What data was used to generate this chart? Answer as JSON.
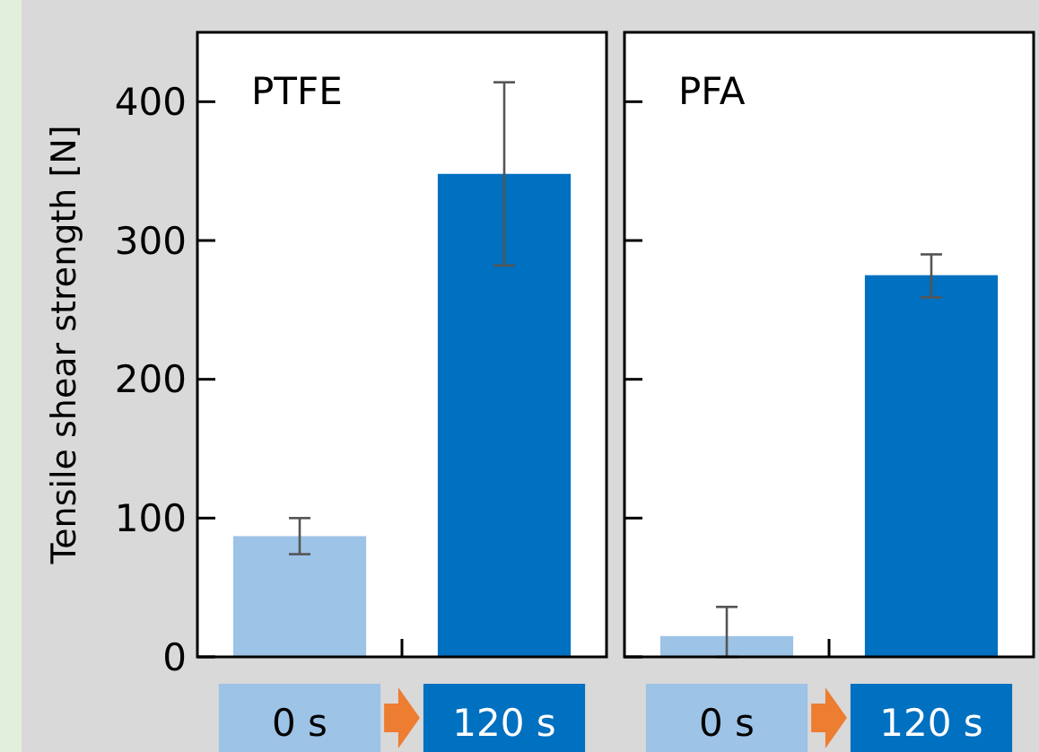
{
  "chart_data": [
    {
      "type": "bar",
      "title": "PTFE",
      "ylabel": "Tensile shear strength [N]",
      "categories": [
        "0 s",
        "120 s"
      ],
      "values": [
        87,
        348
      ],
      "colors": [
        "#9dc3e6",
        "#0070c0"
      ],
      "errors": [
        [
          74,
          100
        ],
        [
          282,
          414
        ]
      ],
      "ylim": [
        0,
        450
      ],
      "yticks": [
        0,
        100,
        200,
        300,
        400
      ],
      "grid": false
    },
    {
      "type": "bar",
      "title": "PFA",
      "categories": [
        "0 s",
        "120 s"
      ],
      "values": [
        15,
        275
      ],
      "colors": [
        "#9dc3e6",
        "#0070c0"
      ],
      "errors": [
        [
          0,
          36
        ],
        [
          259,
          290
        ]
      ],
      "ylim": [
        0,
        450
      ],
      "yticks": [
        0,
        100,
        200,
        300,
        400
      ],
      "grid": false,
      "tick_labels": "x"
    }
  ]
}
